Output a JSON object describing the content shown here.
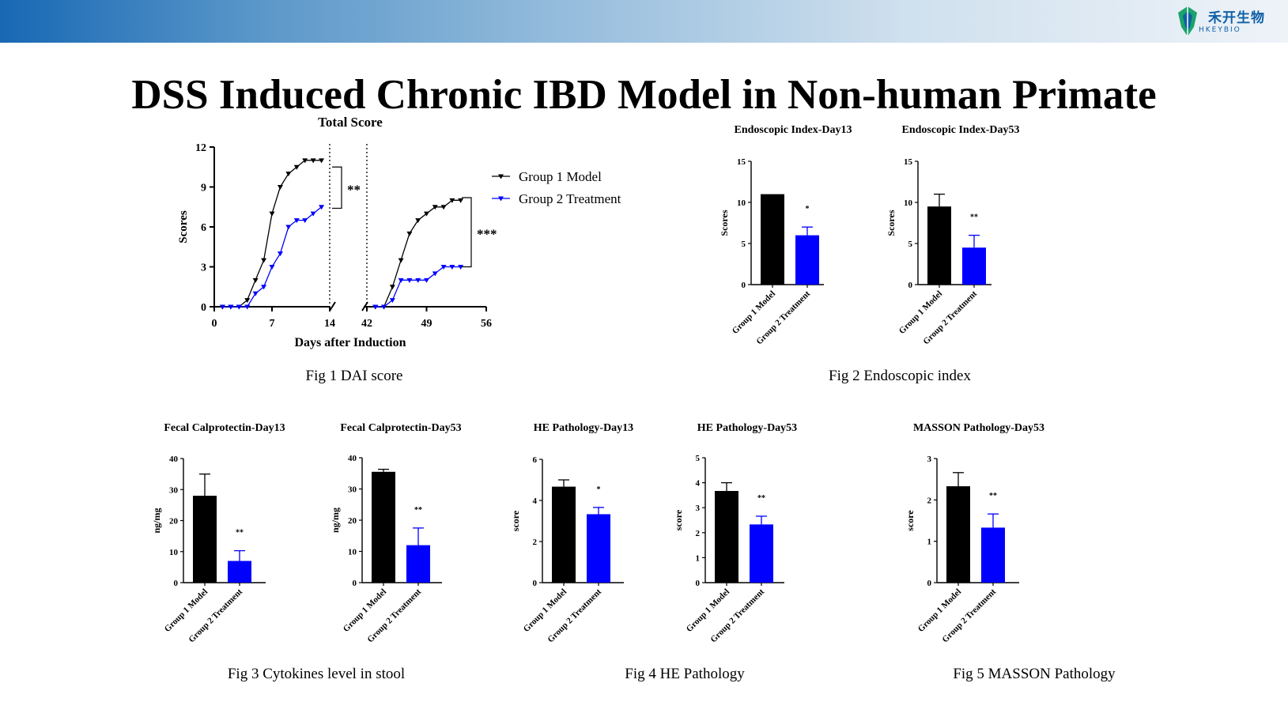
{
  "header": {
    "logo_cn": "禾开生物",
    "logo_en": "HKEYBIO",
    "title": "DSS Induced Chronic IBD Model in Non-human Primate",
    "colors": {
      "model": "#000000",
      "treatment": "#0000ff",
      "brand": "#0f5fa8"
    }
  },
  "captions": {
    "fig1": "Fig 1 DAI score",
    "fig2": "Fig 2 Endoscopic index",
    "fig3": "Fig 3 Cytokines level in stool",
    "fig4": "Fig 4 HE Pathology",
    "fig5": "Fig 5  MASSON Pathology"
  },
  "chart_data": [
    {
      "type": "line",
      "title": "Total Score",
      "xlabel": "Days after Induction",
      "ylabel": "Scores",
      "ylim": [
        0,
        12
      ],
      "yticks": [
        "0",
        "3",
        "6",
        "9",
        "12"
      ],
      "segments": [
        {
          "xlim": [
            0,
            14
          ],
          "xticks": [
            "0",
            "7",
            "14"
          ]
        },
        {
          "xlim": [
            42,
            56
          ],
          "xticks": [
            "42",
            "49",
            "56"
          ]
        }
      ],
      "legend": [
        "Group 1 Model",
        "Group 2 Treatment"
      ],
      "significance": [
        "**",
        "***"
      ],
      "series": [
        {
          "name": "Group 1 Model",
          "segments": [
            {
              "x": [
                1,
                2,
                3,
                4,
                5,
                6,
                7,
                8,
                9,
                10,
                11,
                12,
                13
              ],
              "y": [
                0,
                0,
                0,
                0.5,
                2,
                3.5,
                7,
                9,
                10,
                10.5,
                11,
                11,
                11
              ]
            },
            {
              "x": [
                43,
                44,
                45,
                46,
                47,
                48,
                49,
                50,
                51,
                52,
                53
              ],
              "y": [
                0,
                0,
                1.5,
                3.5,
                5.5,
                6.5,
                7,
                7.5,
                7.5,
                8,
                8
              ]
            }
          ]
        },
        {
          "name": "Group 2 Treatment",
          "segments": [
            {
              "x": [
                1,
                2,
                3,
                4,
                5,
                6,
                7,
                8,
                9,
                10,
                11,
                12,
                13
              ],
              "y": [
                0,
                0,
                0,
                0,
                1,
                1.5,
                3,
                4,
                6,
                6.5,
                6.5,
                7,
                7.5
              ]
            },
            {
              "x": [
                43,
                44,
                45,
                46,
                47,
                48,
                49,
                50,
                51,
                52,
                53
              ],
              "y": [
                0,
                0,
                0.5,
                2,
                2,
                2,
                2,
                2.5,
                3,
                3,
                3
              ]
            }
          ]
        }
      ]
    },
    {
      "type": "bar",
      "title": "Endoscopic Index-Day13",
      "ylabel": "Scores",
      "ylim": [
        0,
        15
      ],
      "yticks": [
        "0",
        "5",
        "10",
        "15"
      ],
      "categories": [
        "Group 1 Model",
        "Group 2 Treatment"
      ],
      "values": [
        11,
        6
      ],
      "errors": [
        0,
        1
      ],
      "sig": "*"
    },
    {
      "type": "bar",
      "title": "Endoscopic Index-Day53",
      "ylabel": "Scores",
      "ylim": [
        0,
        15
      ],
      "yticks": [
        "0",
        "5",
        "10",
        "15"
      ],
      "categories": [
        "Group 1 Model",
        "Group 2 Treatment"
      ],
      "values": [
        9.5,
        4.5
      ],
      "errors": [
        1.5,
        1.5
      ],
      "sig": "**"
    },
    {
      "type": "bar",
      "title": "Fecal Calprotectin-Day13",
      "ylabel": "ng/mg",
      "ylim": [
        0,
        40
      ],
      "yticks": [
        "0",
        "10",
        "20",
        "30",
        "40"
      ],
      "categories": [
        "Group 1 Model",
        "Group 2 Treatment"
      ],
      "values": [
        28,
        7
      ],
      "errors": [
        7,
        3.3
      ],
      "sig": "**"
    },
    {
      "type": "bar",
      "title": "Fecal Calprotectin-Day53",
      "ylabel": "ng/mg",
      "ylim": [
        0,
        40
      ],
      "yticks": [
        "0",
        "10",
        "20",
        "30",
        "40"
      ],
      "categories": [
        "Group 1 Model",
        "Group 2 Treatment"
      ],
      "values": [
        35.5,
        12
      ],
      "errors": [
        0.8,
        5.5
      ],
      "sig": "**"
    },
    {
      "type": "bar",
      "title": "HE Pathology-Day13",
      "ylabel": "score",
      "ylim": [
        0,
        6
      ],
      "yticks": [
        "0",
        "2",
        "4",
        "6"
      ],
      "categories": [
        "Group 1 Model",
        "Group 2 Treatment"
      ],
      "values": [
        4.67,
        3.33
      ],
      "errors": [
        0.33,
        0.33
      ],
      "sig": "*"
    },
    {
      "type": "bar",
      "title": "HE Pathology-Day53",
      "ylabel": "score",
      "ylim": [
        0,
        5
      ],
      "yticks": [
        "0",
        "1",
        "2",
        "3",
        "4",
        "5"
      ],
      "categories": [
        "Group 1 Model",
        "Group 2 Treatment"
      ],
      "values": [
        3.67,
        2.33
      ],
      "errors": [
        0.33,
        0.33
      ],
      "sig": "**"
    },
    {
      "type": "bar",
      "title": "MASSON Pathology-Day53",
      "ylabel": "score",
      "ylim": [
        0,
        3
      ],
      "yticks": [
        "0",
        "1",
        "2",
        "3"
      ],
      "categories": [
        "Group 1 Model",
        "Group 2 Treatment"
      ],
      "values": [
        2.33,
        1.33
      ],
      "errors": [
        0.33,
        0.33
      ],
      "sig": "**"
    }
  ]
}
